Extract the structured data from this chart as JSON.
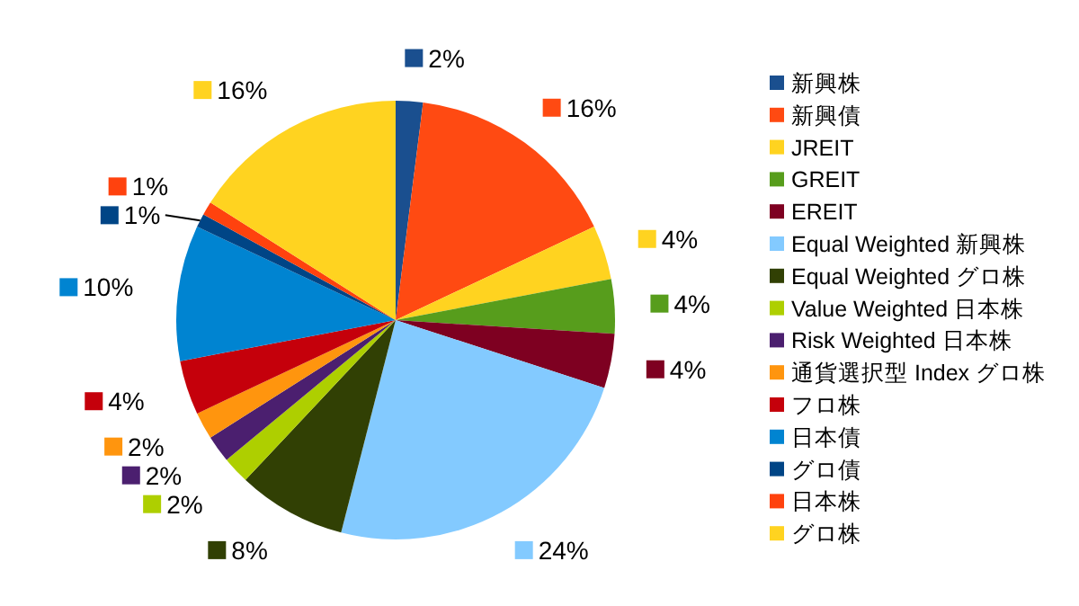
{
  "chart_data": {
    "type": "pie",
    "categories": [
      "新興株",
      "新興債",
      "JREIT",
      "GREIT",
      "EREIT",
      "Equal Weighted 新興株",
      "Equal Weighted グロ株",
      "Value Weighted 日本株",
      "Risk Weighted 日本株",
      "通貨選択型 Index グロ株",
      "フロ株",
      "日本債",
      "グロ債",
      "日本株",
      "グロ株"
    ],
    "values": [
      2,
      16,
      4,
      4,
      4,
      24,
      8,
      2,
      2,
      2,
      4,
      10,
      1,
      1,
      16
    ],
    "colors": [
      "#1a4f8f",
      "#ff4a12",
      "#ffd320",
      "#579d1c",
      "#7e0021",
      "#83caff",
      "#314004",
      "#aecf00",
      "#4b1f6f",
      "#ff950e",
      "#c5000b",
      "#0084d1",
      "#004586",
      "#ff420e",
      "#ffd320"
    ],
    "value_labels": [
      "2%",
      "16%",
      "4%",
      "4%",
      "4%",
      "24%",
      "8%",
      "2%",
      "2%",
      "2%",
      "4%",
      "10%",
      "1%",
      "1%",
      "16%"
    ],
    "legend": "right"
  }
}
